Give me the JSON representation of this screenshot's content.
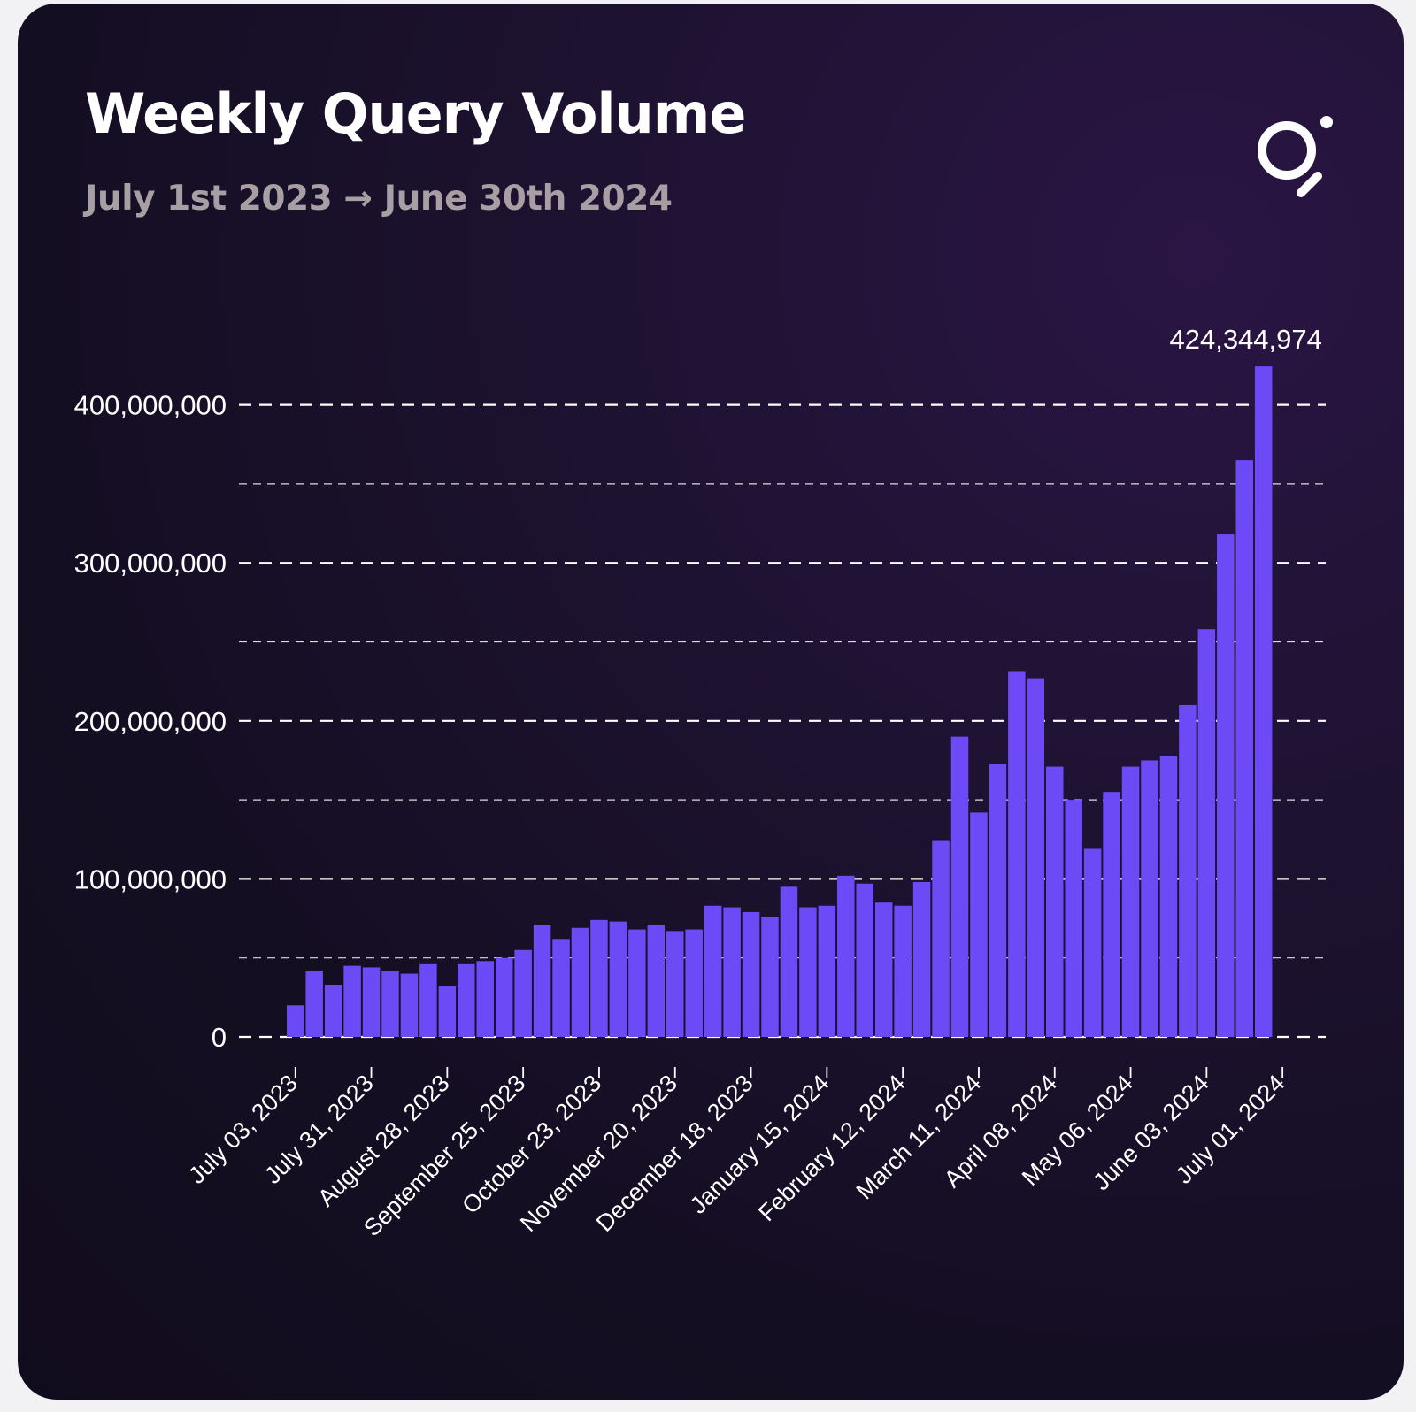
{
  "colors": {
    "bar": "#6c4bf6",
    "title": "#ffffff",
    "subtitle": "#a79fa3",
    "grid": "#ffffff"
  },
  "header": {
    "title": "Weekly Query Volume",
    "subtitle": "July 1st 2023 → June 30th 2024",
    "logo_icon": "search-magnifier-icon"
  },
  "chart_data": {
    "type": "bar",
    "title": "Weekly Query Volume",
    "subtitle": "July 1st 2023 → June 30th 2024",
    "xlabel": "",
    "ylabel": "",
    "ylim": [
      0,
      424344974
    ],
    "y_ticks": [
      0,
      100000000,
      200000000,
      300000000,
      400000000
    ],
    "y_tick_labels": [
      "0",
      "100,000,000",
      "200,000,000",
      "300,000,000",
      "400,000,000"
    ],
    "minor_gridlines": [
      50000000,
      150000000,
      250000000,
      350000000
    ],
    "grid": true,
    "legend": "none",
    "x_tick_labels": [
      "July 03, 2023",
      "July 31, 2023",
      "August 28, 2023",
      "September 25, 2023",
      "October 23, 2023",
      "November 20, 2023",
      "December 18, 2023",
      "January 15, 2024",
      "February 12, 2024",
      "March 11, 2024",
      "April 08, 2024",
      "May 06, 2024",
      "June 03, 2024",
      "July 01, 2024"
    ],
    "x_tick_week_index": [
      0,
      4,
      8,
      12,
      16,
      20,
      24,
      28,
      32,
      36,
      40,
      44,
      48,
      52
    ],
    "values": [
      20000000,
      42000000,
      33000000,
      45000000,
      44000000,
      42000000,
      40000000,
      46000000,
      32000000,
      46000000,
      48000000,
      50000000,
      55000000,
      71000000,
      62000000,
      69000000,
      74000000,
      73000000,
      68000000,
      71000000,
      67000000,
      68000000,
      83000000,
      82000000,
      79000000,
      76000000,
      95000000,
      82000000,
      83000000,
      102000000,
      97000000,
      85000000,
      83000000,
      98000000,
      124000000,
      190000000,
      142000000,
      173000000,
      231000000,
      227000000,
      171000000,
      150000000,
      119000000,
      155000000,
      171000000,
      175000000,
      178000000,
      210000000,
      258000000,
      318000000,
      365000000,
      424344974
    ],
    "annotations": [
      {
        "text": "424,344,974",
        "week_index": 51
      }
    ]
  }
}
